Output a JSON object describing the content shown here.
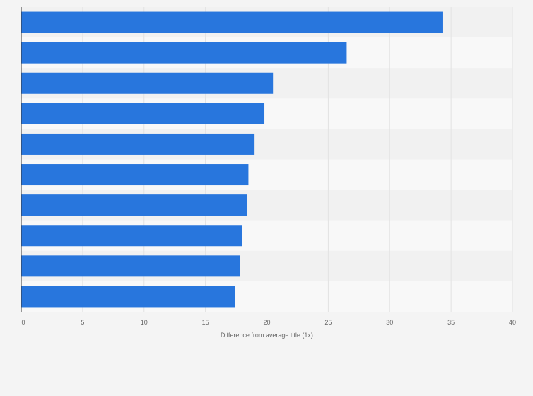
{
  "chart_data": {
    "type": "bar",
    "orientation": "horizontal",
    "categories": [
      "",
      "",
      "",
      "",
      "",
      "",
      "",
      "",
      "",
      ""
    ],
    "values": [
      34.3,
      26.5,
      20.5,
      19.8,
      19.0,
      18.5,
      18.4,
      18.0,
      17.8,
      17.4
    ],
    "title": "",
    "xlabel": "Difference from average title (1x)",
    "ylabel": "",
    "xlim": [
      0,
      40
    ],
    "xticks": [
      0,
      5,
      10,
      15,
      20,
      25,
      30,
      35,
      40
    ],
    "grid": true,
    "legend": "none"
  },
  "colors": {
    "bar": "#2876dd",
    "background": "#f4f4f4",
    "band_light": "#f8f8f8",
    "band_dark": "#f1f1f1",
    "grid": "#e2e2e2",
    "axis": "#333333",
    "text": "#666666"
  }
}
